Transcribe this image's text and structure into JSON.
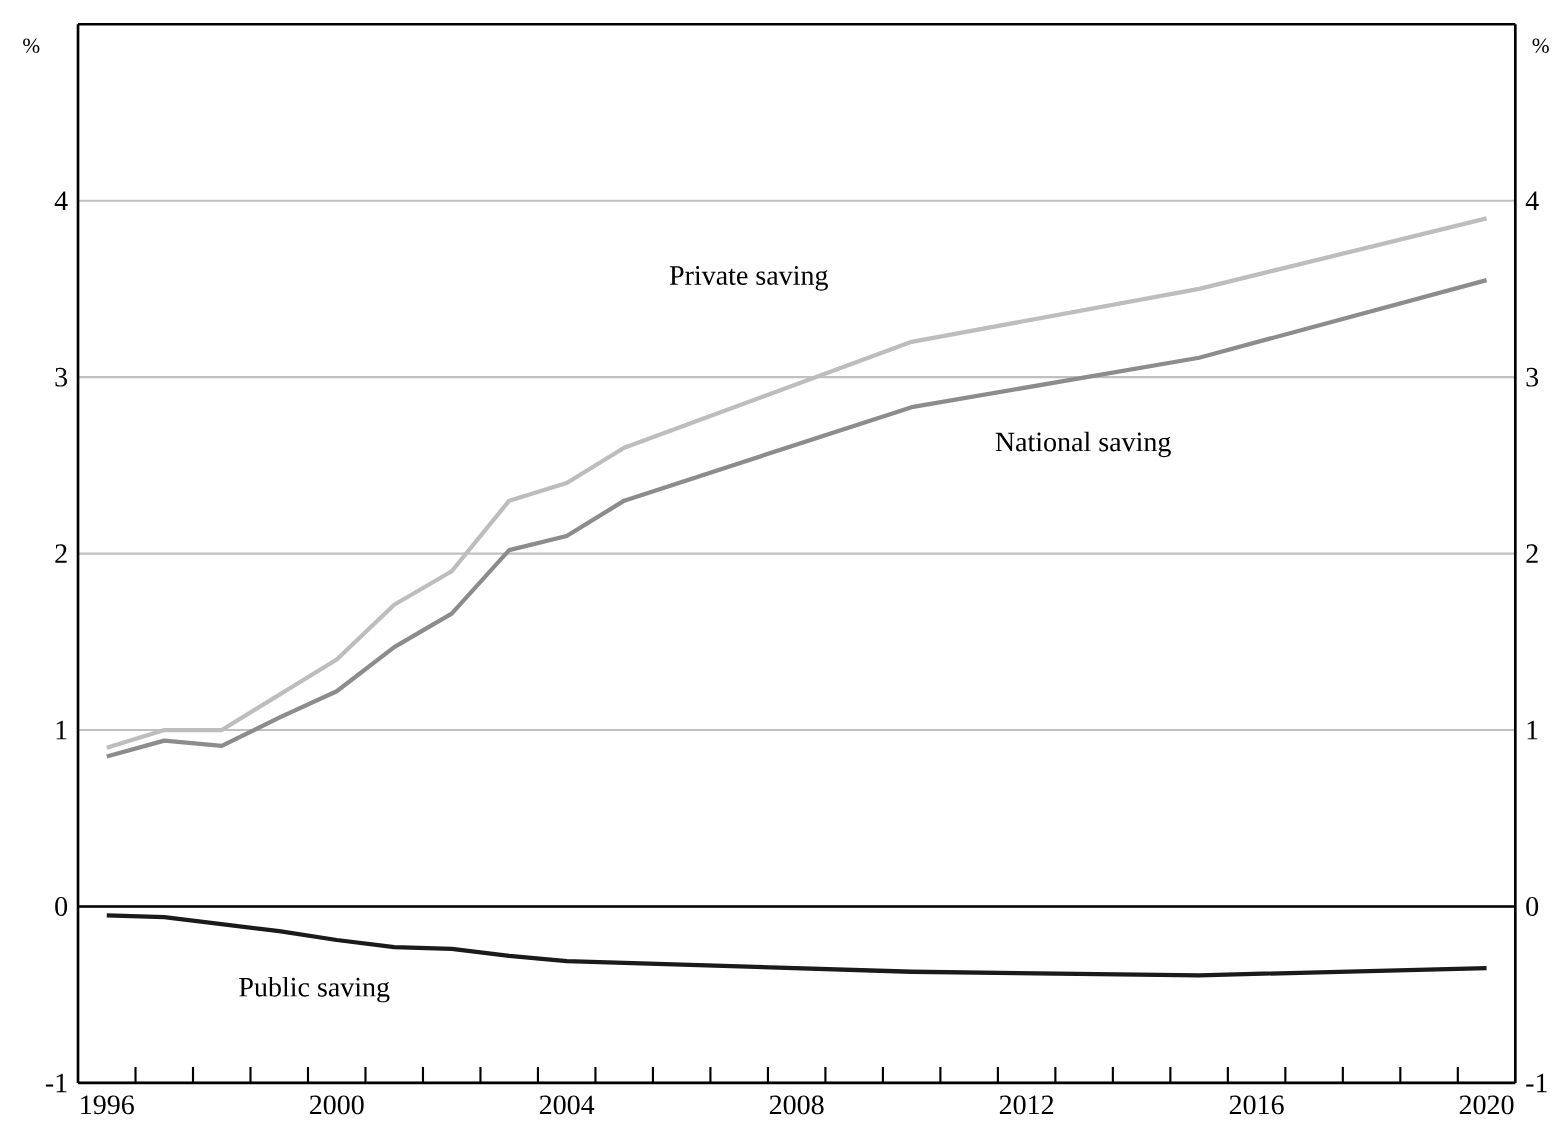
{
  "chart_data": {
    "type": "line",
    "ylabel": "%",
    "y2label": "%",
    "x": [
      1996,
      1997,
      1998,
      1999,
      2000,
      2001,
      2002,
      2003,
      2004,
      2005,
      2010,
      2015,
      2020
    ],
    "series": [
      {
        "name": "Private saving",
        "color": "#bdbdbd",
        "values": [
          0.9,
          1.0,
          1.0,
          1.2,
          1.4,
          1.71,
          1.9,
          2.3,
          2.4,
          2.6,
          3.2,
          3.5,
          3.9
        ]
      },
      {
        "name": "National saving",
        "color": "#8c8c8c",
        "values": [
          0.85,
          0.94,
          0.91,
          1.07,
          1.22,
          1.47,
          1.66,
          2.02,
          2.1,
          2.3,
          2.83,
          3.11,
          3.55
        ]
      },
      {
        "name": "Public saving",
        "color": "#1a1a1a",
        "values": [
          -0.05,
          -0.06,
          -0.1,
          -0.14,
          -0.19,
          -0.23,
          -0.24,
          -0.28,
          -0.31,
          -0.32,
          -0.37,
          -0.39,
          -0.35
        ]
      }
    ],
    "xlim": [
      1995.5,
      2020.5
    ],
    "xticks": [
      1996,
      2000,
      2004,
      2008,
      2012,
      2016,
      2020,
      {
        "value": 1996.5,
        "label": null
      },
      {
        "value": 1997.5,
        "label": null
      },
      {
        "value": 1998.5,
        "label": null
      },
      {
        "value": 1999.5,
        "label": null
      },
      {
        "value": 2000.5,
        "label": null
      },
      {
        "value": 2001.5,
        "label": null
      },
      {
        "value": 2002.5,
        "label": null
      },
      {
        "value": 2003.5,
        "label": null
      },
      {
        "value": 2004.5,
        "label": null
      },
      {
        "value": 2005.5,
        "label": null
      },
      {
        "value": 2006.5,
        "label": null
      },
      {
        "value": 2007.5,
        "label": null
      },
      {
        "value": 2008.5,
        "label": null
      },
      {
        "value": 2009.5,
        "label": null
      },
      {
        "value": 2010.5,
        "label": null
      },
      {
        "value": 2011.5,
        "label": null
      },
      {
        "value": 2012.5,
        "label": null
      },
      {
        "value": 2013.5,
        "label": null
      },
      {
        "value": 2014.5,
        "label": null
      },
      {
        "value": 2015.5,
        "label": null
      },
      {
        "value": 2016.5,
        "label": null
      },
      {
        "value": 2017.5,
        "label": null
      },
      {
        "value": 2018.5,
        "label": null
      },
      {
        "value": 2019.5,
        "label": null
      }
    ],
    "ylim": [
      -1,
      5
    ],
    "yticks": [
      -1,
      0,
      1,
      2,
      3,
      4
    ],
    "y2lim": [
      -1,
      5
    ],
    "y2ticks": [
      -1,
      0,
      1,
      2,
      3,
      4
    ],
    "grid": "y",
    "legend": false,
    "ref_lines": [
      {
        "axis": "y",
        "value": 0,
        "color": "#000000"
      }
    ]
  }
}
